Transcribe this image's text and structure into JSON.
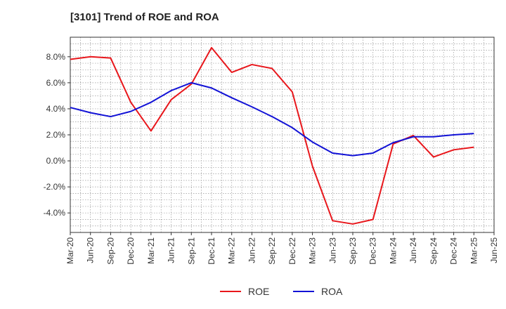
{
  "chart_data": {
    "type": "line",
    "title": "[3101]  Trend of ROE and ROA",
    "xlabel": "",
    "ylabel": "",
    "x": [
      "Mar-20",
      "Jun-20",
      "Sep-20",
      "Dec-20",
      "Mar-21",
      "Jun-21",
      "Sep-21",
      "Dec-21",
      "Mar-22",
      "Jun-22",
      "Sep-22",
      "Dec-22",
      "Mar-23",
      "Jun-23",
      "Sep-23",
      "Dec-23",
      "Mar-24",
      "Jun-24",
      "Sep-24",
      "Dec-24",
      "Mar-25",
      "Jun-25"
    ],
    "ylim": [
      -5.5,
      9.5
    ],
    "yticks": [
      8.0,
      6.0,
      4.0,
      2.0,
      0.0,
      -2.0,
      -4.0
    ],
    "ytick_labels": [
      "8.0%",
      "6.0%",
      "4.0%",
      "2.0%",
      "0.0%",
      "-2.0%",
      "-4.0%"
    ],
    "grid": true,
    "legend_position": "bottom",
    "series": [
      {
        "name": "ROE",
        "color": "#e8161b",
        "values": [
          7.8,
          8.0,
          7.9,
          4.5,
          2.3,
          4.7,
          5.9,
          8.7,
          6.8,
          7.4,
          7.1,
          5.3,
          -0.4,
          -4.6,
          -4.85,
          -4.5,
          1.3,
          1.95,
          0.3,
          0.85,
          1.05,
          null
        ]
      },
      {
        "name": "ROA",
        "color": "#1212d6",
        "values": [
          4.1,
          3.7,
          3.4,
          3.8,
          4.5,
          5.4,
          6.0,
          5.6,
          4.85,
          4.15,
          3.4,
          2.55,
          1.45,
          0.6,
          0.4,
          0.6,
          1.4,
          1.85,
          1.85,
          2.0,
          2.1,
          null
        ]
      }
    ]
  }
}
